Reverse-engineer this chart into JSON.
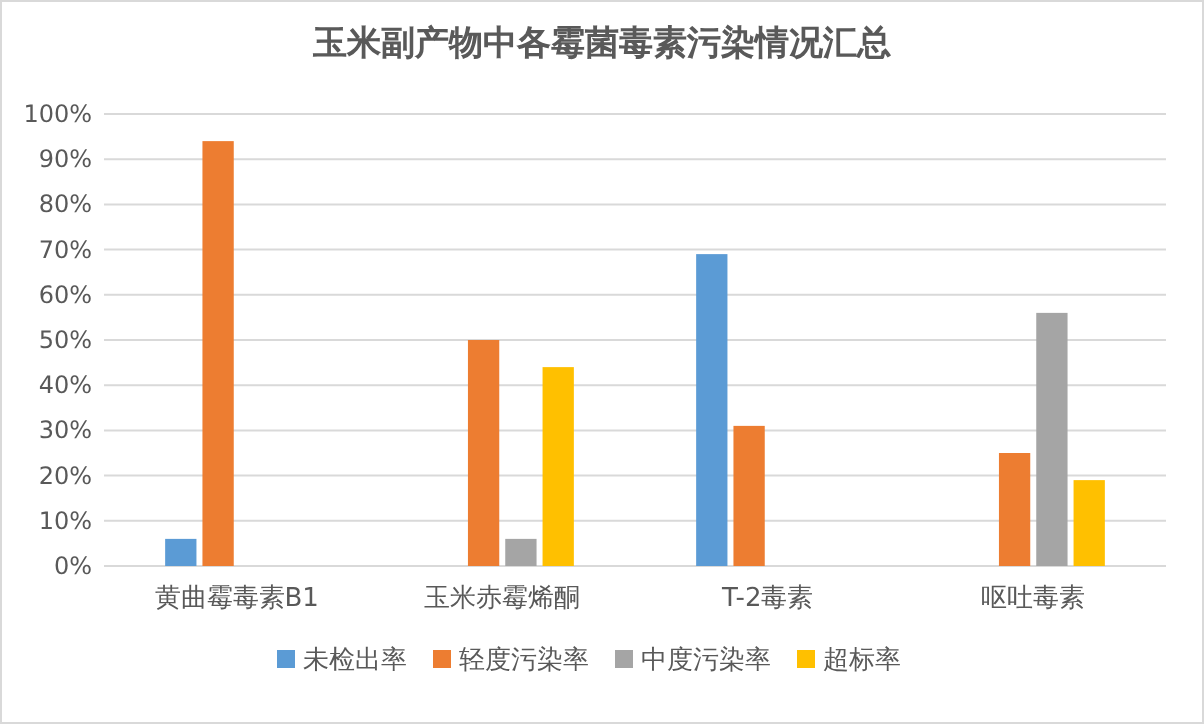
{
  "chart_data": {
    "type": "bar",
    "title": "玉米副产物中各霉菌毒素污染情况汇总",
    "categories": [
      "黄曲霉毒素B1",
      "玉米赤霉烯酮",
      "T-2毒素",
      "呕吐毒素"
    ],
    "series": [
      {
        "name": "未检出率",
        "color": "#5b9bd5",
        "values": [
          6,
          null,
          69,
          null
        ]
      },
      {
        "name": "轻度污染率",
        "color": "#ed7d31",
        "values": [
          94,
          50,
          31,
          25
        ]
      },
      {
        "name": "中度污染率",
        "color": "#a5a5a5",
        "values": [
          null,
          6,
          null,
          56
        ]
      },
      {
        "name": "超标率",
        "color": "#ffc000",
        "values": [
          null,
          44,
          null,
          19
        ]
      }
    ],
    "ylim": [
      0,
      100
    ],
    "yticks": [
      {
        "value": 0,
        "label": "0%"
      },
      {
        "value": 10,
        "label": "10%"
      },
      {
        "value": 20,
        "label": "20%"
      },
      {
        "value": 30,
        "label": "30%"
      },
      {
        "value": 40,
        "label": "40%"
      },
      {
        "value": 50,
        "label": "50%"
      },
      {
        "value": 60,
        "label": "60%"
      },
      {
        "value": 70,
        "label": "70%"
      },
      {
        "value": 80,
        "label": "80%"
      },
      {
        "value": 90,
        "label": "90%"
      },
      {
        "value": 100,
        "label": "100%"
      }
    ],
    "grid": "y",
    "legend": "bottom"
  }
}
